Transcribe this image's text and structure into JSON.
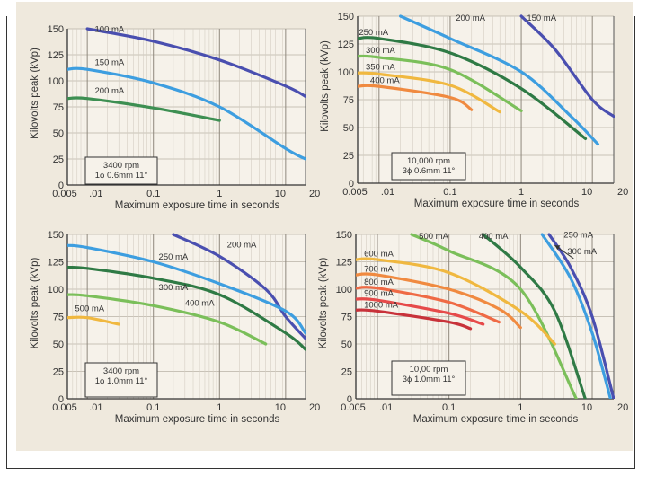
{
  "chart_data": [
    {
      "type": "line",
      "xscale": "log",
      "xlim": [
        0.005,
        20
      ],
      "ylim": [
        0,
        150
      ],
      "xticks": [
        0.005,
        0.01,
        0.1,
        1,
        10,
        20
      ],
      "xtick_labels": [
        "0.005",
        ".01",
        "0.1",
        "1",
        "10",
        "20"
      ],
      "yticks": [
        0,
        25,
        50,
        75,
        100,
        125,
        150
      ],
      "ytick_labels": [
        "0",
        "25",
        "50",
        "75",
        "100",
        "125",
        "150"
      ],
      "xlabel": "Maximum exposure time in seconds",
      "ylabel": "Kilovolts peak (kVp)",
      "grid": true,
      "note": [
        "3400 rpm",
        "1ϕ 0.6mm 11°"
      ],
      "series": [
        {
          "name": "100 mA",
          "color": "#4a4fb0",
          "x": [
            0.01,
            0.1,
            1,
            10,
            20
          ],
          "y": [
            150,
            138,
            120,
            95,
            85
          ]
        },
        {
          "name": "150 mA",
          "color": "#3d9ee0",
          "x": [
            0.005,
            0.01,
            0.1,
            1,
            10,
            20
          ],
          "y": [
            111,
            111,
            98,
            75,
            35,
            25
          ]
        },
        {
          "name": "200 mA",
          "color": "#3d8f52",
          "x": [
            0.005,
            0.01,
            0.1,
            1
          ],
          "y": [
            83,
            83,
            74,
            62
          ]
        }
      ]
    },
    {
      "type": "line",
      "xscale": "log",
      "xlim": [
        0.005,
        20
      ],
      "ylim": [
        0,
        150
      ],
      "xticks": [
        0.005,
        0.01,
        0.1,
        1,
        10,
        20
      ],
      "xtick_labels": [
        "0.005",
        ".01",
        "0.1",
        "1",
        "10",
        "20"
      ],
      "yticks": [
        0,
        25,
        50,
        75,
        100,
        125,
        150
      ],
      "ytick_labels": [
        "0",
        "25",
        "50",
        "75",
        "100",
        "125",
        "150"
      ],
      "xlabel": "Maximum exposure time in seconds",
      "ylabel": "Kilovolts peak (kVp)",
      "grid": true,
      "note": [
        "10,000 rpm",
        "3ϕ 0.6mm 11°"
      ],
      "series": [
        {
          "name": "150 mA",
          "color": "#4a4fb0",
          "x": [
            1,
            3,
            10,
            20
          ],
          "y": [
            150,
            120,
            75,
            60
          ]
        },
        {
          "name": "200 mA",
          "color": "#3d9ee0",
          "x": [
            0.02,
            0.1,
            1,
            5,
            12
          ],
          "y": [
            150,
            130,
            100,
            60,
            35
          ]
        },
        {
          "name": "250 mA",
          "color": "#2f7a45",
          "x": [
            0.005,
            0.01,
            0.1,
            1,
            8
          ],
          "y": [
            130,
            130,
            117,
            85,
            40
          ]
        },
        {
          "name": "300 mA",
          "color": "#7bbf5a",
          "x": [
            0.005,
            0.01,
            0.1,
            1
          ],
          "y": [
            114,
            113,
            102,
            65
          ]
        },
        {
          "name": "350 mA",
          "color": "#f0b840",
          "x": [
            0.005,
            0.01,
            0.1,
            0.5
          ],
          "y": [
            99,
            98,
            88,
            64
          ]
        },
        {
          "name": "400 mA",
          "color": "#f08a40",
          "x": [
            0.005,
            0.01,
            0.1,
            0.2
          ],
          "y": [
            87,
            87,
            77,
            66
          ]
        }
      ]
    },
    {
      "type": "line",
      "xscale": "log",
      "xlim": [
        0.005,
        20
      ],
      "ylim": [
        0,
        150
      ],
      "xticks": [
        0.005,
        0.01,
        0.1,
        1,
        10,
        20
      ],
      "xtick_labels": [
        "0.005",
        ".01",
        "0.1",
        "1",
        "10",
        "20"
      ],
      "yticks": [
        0,
        25,
        50,
        75,
        100,
        125,
        150
      ],
      "ytick_labels": [
        "0",
        "25",
        "50",
        "75",
        "100",
        "125",
        "150"
      ],
      "xlabel": "Maximum exposure time in seconds",
      "ylabel": "Kilovolts peak (kVp)",
      "grid": true,
      "note": [
        "3400 rpm",
        "1ϕ 1.0mm 11°"
      ],
      "series": [
        {
          "name": "200 mA",
          "color": "#4a4fb0",
          "x": [
            0.2,
            1,
            5,
            10,
            20
          ],
          "y": [
            150,
            130,
            100,
            75,
            55
          ]
        },
        {
          "name": "250 mA",
          "color": "#3d9ee0",
          "x": [
            0.005,
            0.01,
            0.1,
            1,
            10,
            20
          ],
          "y": [
            140,
            138,
            125,
            105,
            80,
            60
          ]
        },
        {
          "name": "300 mA",
          "color": "#2f7a45",
          "x": [
            0.005,
            0.01,
            0.1,
            1,
            10,
            20
          ],
          "y": [
            120,
            119,
            110,
            95,
            60,
            45
          ]
        },
        {
          "name": "400 mA",
          "color": "#7bbf5a",
          "x": [
            0.005,
            0.01,
            0.1,
            1,
            5
          ],
          "y": [
            95,
            94,
            85,
            70,
            50
          ]
        },
        {
          "name": "500 mA",
          "color": "#f0b840",
          "x": [
            0.005,
            0.01,
            0.03
          ],
          "y": [
            74,
            74,
            68
          ]
        }
      ]
    },
    {
      "type": "line",
      "xscale": "log",
      "xlim": [
        0.005,
        20
      ],
      "ylim": [
        0,
        150
      ],
      "xticks": [
        0.005,
        0.01,
        0.1,
        1,
        10,
        20
      ],
      "xtick_labels": [
        "0.005",
        ".01",
        "0.1",
        "1",
        "10",
        "20"
      ],
      "yticks": [
        0,
        25,
        50,
        75,
        100,
        125,
        150
      ],
      "ytick_labels": [
        "0",
        "25",
        "50",
        "75",
        "100",
        "125",
        "150"
      ],
      "xlabel": "Maximum exposure time in seconds",
      "ylabel": "Kilovolts peak (kVp)",
      "grid": true,
      "note": [
        "10,00 rpm",
        "3ϕ 1.0mm 11°"
      ],
      "series": [
        {
          "name": "250 mA",
          "color": "#4a4fb0",
          "x": [
            2.5,
            5,
            10,
            20
          ],
          "y": [
            150,
            120,
            75,
            0
          ]
        },
        {
          "name": "300 mA",
          "color": "#3d9ee0",
          "x": [
            2,
            5,
            10,
            18
          ],
          "y": [
            150,
            110,
            60,
            0
          ]
        },
        {
          "name": "400 mA",
          "color": "#2f7a45",
          "x": [
            0.3,
            1,
            3,
            8
          ],
          "y": [
            150,
            120,
            80,
            0
          ]
        },
        {
          "name": "500 mA",
          "color": "#7bbf5a",
          "x": [
            0.03,
            0.1,
            1,
            6
          ],
          "y": [
            150,
            135,
            100,
            0
          ]
        },
        {
          "name": "600 mA",
          "color": "#f0b840",
          "x": [
            0.005,
            0.01,
            0.1,
            1,
            3
          ],
          "y": [
            127,
            127,
            115,
            80,
            50
          ]
        },
        {
          "name": "700 mA",
          "color": "#f08a40",
          "x": [
            0.005,
            0.01,
            0.1,
            0.5,
            1
          ],
          "y": [
            113,
            113,
            100,
            82,
            65
          ]
        },
        {
          "name": "800 mA",
          "color": "#ef6a45",
          "x": [
            0.005,
            0.01,
            0.1,
            0.5
          ],
          "y": [
            101,
            101,
            88,
            70
          ]
        },
        {
          "name": "900 mA",
          "color": "#e64a4a",
          "x": [
            0.005,
            0.01,
            0.1,
            0.3
          ],
          "y": [
            91,
            90,
            78,
            68
          ]
        },
        {
          "name": "1000 mA",
          "color": "#c8323a",
          "x": [
            0.005,
            0.01,
            0.1,
            0.2
          ],
          "y": [
            81,
            80,
            70,
            64
          ]
        }
      ]
    }
  ]
}
